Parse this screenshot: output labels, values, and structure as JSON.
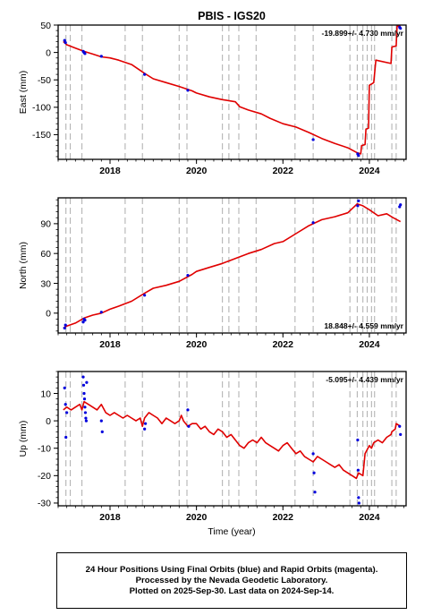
{
  "figure": {
    "title": "PBIS - IGS20",
    "x_label": "Time (year)"
  },
  "colors": {
    "model_line": "#e00000",
    "final_orbits": "#0000dd",
    "rapid_orbits": "#cc00cc",
    "equipment_change": "#b4b4b4",
    "axis": "#000000"
  },
  "chart_data": [
    {
      "type": "line",
      "id": "east",
      "ylabel": "East (mm)",
      "rate_label": "-19.899+/- 4.730 mm/yr",
      "rate_position": "top-right",
      "xlim": [
        2016.8,
        2024.85
      ],
      "ylim": [
        -195,
        50
      ],
      "x_ticks": [
        2018,
        2020,
        2022,
        2024
      ],
      "y_ticks": [
        -150,
        -100,
        -50,
        0,
        50
      ],
      "event_lines": [
        2016.98,
        2017.08,
        2017.35,
        2018.35,
        2018.75,
        2019.6,
        2019.78,
        2020.6,
        2020.75,
        2020.98,
        2021.38,
        2022.28,
        2022.7,
        2023.55,
        2023.72,
        2023.85,
        2023.95,
        2024.05,
        2024.12,
        2024.52,
        2024.62
      ],
      "model_line": {
        "x": [
          2016.92,
          2017.0,
          2017.2,
          2017.4,
          2017.6,
          2017.8,
          2018.0,
          2018.2,
          2018.5,
          2018.8,
          2019.0,
          2019.3,
          2019.6,
          2019.9,
          2020.0,
          2020.3,
          2020.6,
          2020.9,
          2021.0,
          2021.2,
          2021.5,
          2021.7,
          2022.0,
          2022.3,
          2022.6,
          2022.9,
          2023.2,
          2023.5,
          2023.72,
          2023.8,
          2023.82,
          2023.9,
          2023.92,
          2023.98,
          2024.0,
          2024.1,
          2024.15,
          2024.5,
          2024.52,
          2024.62,
          2024.64,
          2024.72
        ],
        "y": [
          20,
          14,
          8,
          2,
          -3,
          -8,
          -10,
          -14,
          -22,
          -38,
          -48,
          -55,
          -62,
          -70,
          -74,
          -81,
          -86,
          -90,
          -99,
          -105,
          -112,
          -120,
          -130,
          -136,
          -146,
          -157,
          -166,
          -174,
          -183,
          -185,
          -170,
          -168,
          -140,
          -138,
          -60,
          -55,
          -14,
          -20,
          10,
          12,
          48,
          48
        ]
      },
      "final_orbits": {
        "x": [
          2016.95,
          2016.97,
          2017.38,
          2017.4,
          2017.42,
          2017.8,
          2018.8,
          2019.8,
          2022.7,
          2023.73,
          2023.75
        ],
        "y": [
          22,
          18,
          2,
          0,
          -2,
          -7,
          -40,
          -69,
          -159,
          -185,
          -188
        ]
      },
      "rapid_orbits": {
        "x": [
          2024.7,
          2024.72
        ],
        "y": [
          46,
          44
        ]
      }
    },
    {
      "type": "line",
      "id": "north",
      "ylabel": "North (mm)",
      "rate_label": "18.848+/- 4.559 mm/yr",
      "rate_position": "bottom-right",
      "xlim": [
        2016.8,
        2024.85
      ],
      "ylim": [
        -20,
        116
      ],
      "x_ticks": [
        2018,
        2020,
        2022,
        2024
      ],
      "y_ticks": [
        0,
        30,
        60,
        90
      ],
      "event_lines": [
        2016.98,
        2017.08,
        2017.35,
        2018.35,
        2018.75,
        2019.6,
        2019.78,
        2020.6,
        2020.75,
        2020.98,
        2021.38,
        2022.28,
        2022.7,
        2023.55,
        2023.72,
        2023.85,
        2023.95,
        2024.05,
        2024.12,
        2024.52,
        2024.62
      ],
      "model_line": {
        "x": [
          2016.92,
          2017.0,
          2017.2,
          2017.4,
          2017.6,
          2017.8,
          2018.0,
          2018.2,
          2018.5,
          2018.8,
          2019.0,
          2019.3,
          2019.6,
          2019.9,
          2020.0,
          2020.3,
          2020.6,
          2020.9,
          2021.2,
          2021.5,
          2021.8,
          2022.0,
          2022.3,
          2022.6,
          2022.9,
          2023.2,
          2023.5,
          2023.72,
          2023.85,
          2024.0,
          2024.2,
          2024.4,
          2024.55,
          2024.72
        ],
        "y": [
          -15,
          -13,
          -10,
          -5,
          -2,
          0,
          4,
          7,
          12,
          20,
          25,
          28,
          32,
          39,
          42,
          46,
          50,
          55,
          60,
          64,
          70,
          72,
          80,
          88,
          94,
          97,
          101,
          110,
          108,
          104,
          98,
          100,
          96,
          92
        ]
      },
      "final_orbits": {
        "x": [
          2016.95,
          2016.97,
          2017.38,
          2017.4,
          2017.42,
          2017.8,
          2018.8,
          2019.8,
          2022.7,
          2023.73,
          2023.75
        ],
        "y": [
          -15,
          -12,
          -9,
          -6,
          -7,
          1,
          18,
          38,
          91,
          108,
          113
        ]
      },
      "rapid_orbits": {
        "x": [
          2024.7,
          2024.72
        ],
        "y": [
          107,
          109
        ]
      }
    },
    {
      "type": "line",
      "id": "up",
      "ylabel": "Up (mm)",
      "rate_label": "-5.095+/- 4.439 mm/yr",
      "rate_position": "top-right",
      "xlim": [
        2016.8,
        2024.85
      ],
      "ylim": [
        -31,
        18
      ],
      "x_ticks": [
        2018,
        2020,
        2022,
        2024
      ],
      "y_ticks": [
        -30,
        -20,
        -10,
        0,
        10
      ],
      "event_lines": [
        2016.98,
        2017.08,
        2017.35,
        2018.35,
        2018.75,
        2019.6,
        2019.78,
        2020.6,
        2020.75,
        2020.98,
        2021.38,
        2022.28,
        2022.7,
        2023.55,
        2023.72,
        2023.85,
        2023.95,
        2024.05,
        2024.12,
        2024.52,
        2024.62
      ],
      "model_line": {
        "x": [
          2016.92,
          2017.0,
          2017.1,
          2017.2,
          2017.3,
          2017.35,
          2017.4,
          2017.5,
          2017.6,
          2017.7,
          2017.8,
          2017.9,
          2018.0,
          2018.1,
          2018.2,
          2018.3,
          2018.4,
          2018.5,
          2018.6,
          2018.7,
          2018.75,
          2018.8,
          2018.9,
          2019.0,
          2019.1,
          2019.2,
          2019.3,
          2019.4,
          2019.5,
          2019.6,
          2019.65,
          2019.7,
          2019.8,
          2019.9,
          2020.0,
          2020.1,
          2020.2,
          2020.3,
          2020.4,
          2020.5,
          2020.6,
          2020.7,
          2020.8,
          2020.9,
          2021.0,
          2021.1,
          2021.2,
          2021.3,
          2021.4,
          2021.5,
          2021.6,
          2021.7,
          2021.8,
          2021.9,
          2022.0,
          2022.1,
          2022.2,
          2022.3,
          2022.4,
          2022.5,
          2022.6,
          2022.7,
          2022.8,
          2022.9,
          2023.0,
          2023.1,
          2023.2,
          2023.3,
          2023.4,
          2023.5,
          2023.6,
          2023.7,
          2023.75,
          2023.85,
          2023.9,
          2024.0,
          2024.05,
          2024.1,
          2024.2,
          2024.3,
          2024.4,
          2024.5,
          2024.52,
          2024.6,
          2024.62,
          2024.72
        ],
        "y": [
          4,
          5,
          4,
          5,
          6,
          4,
          7,
          6,
          5,
          4,
          6,
          3,
          2,
          3,
          2,
          1,
          2,
          1,
          0,
          1,
          -2,
          1,
          3,
          2,
          1,
          -1,
          1,
          0,
          -1,
          0,
          2,
          0,
          -2,
          -1,
          -1,
          -3,
          -2,
          -4,
          -5,
          -3,
          -4,
          -6,
          -5,
          -7,
          -9,
          -10,
          -8,
          -7,
          -8,
          -6,
          -8,
          -9,
          -10,
          -11,
          -9,
          -8,
          -10,
          -12,
          -11,
          -13,
          -14,
          -15,
          -13,
          -14,
          -15,
          -16,
          -17,
          -16,
          -18,
          -19,
          -20,
          -21,
          -19,
          -20,
          -12,
          -9,
          -10,
          -8,
          -7,
          -8,
          -6,
          -5,
          -4,
          -3,
          -1,
          -2
        ]
      },
      "final_orbits": {
        "x": [
          2016.95,
          2016.97,
          2016.98,
          2017.0,
          2017.38,
          2017.39,
          2017.4,
          2017.41,
          2017.42,
          2017.43,
          2017.44,
          2017.45,
          2017.46,
          2017.8,
          2017.82,
          2018.8,
          2018.82,
          2019.8,
          2019.82,
          2022.7,
          2022.72,
          2022.74,
          2023.73,
          2023.74,
          2023.75,
          2023.76,
          2024.7,
          2024.72
        ],
        "y": [
          12,
          6,
          -6,
          3,
          16,
          13,
          10,
          8,
          5,
          3,
          1,
          0,
          14,
          0,
          -4,
          -3,
          -1,
          4,
          -2,
          -12,
          -19,
          -26,
          -7,
          -18,
          -28,
          -30,
          -2,
          -5
        ]
      },
      "rapid_orbits": {
        "x": [],
        "y": []
      }
    }
  ],
  "caption": {
    "lines": [
      "24 Hour Positions Using Final Orbits (blue) and Rapid Orbits (magenta).",
      "Processed by the Nevada Geodetic Laboratory.",
      "Plotted on 2025-Sep-30. Last data on 2024-Sep-14."
    ]
  }
}
